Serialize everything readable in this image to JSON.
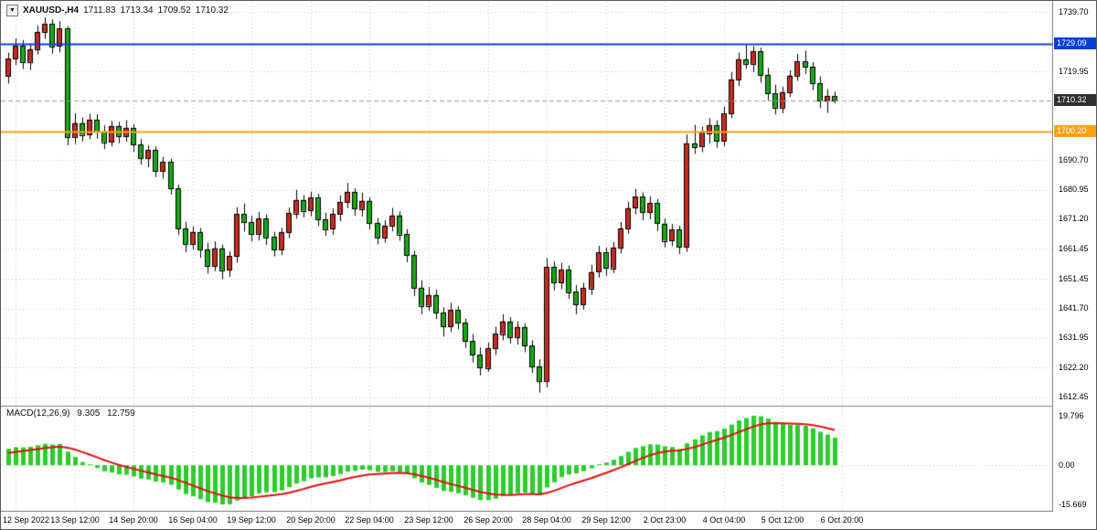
{
  "header": {
    "dropdown_icon": "▼",
    "symbol": "XAUUSD-,H4",
    "open": "1711.83",
    "high": "1713.34",
    "low": "1709.52",
    "close": "1710.32"
  },
  "indicator_header": {
    "name": "MACD(12,26,9)",
    "macd_value": "9.305",
    "signal_value": "12.759"
  },
  "colors": {
    "up_candle": "#c62b20",
    "down_candle": "#18a818",
    "candle_outline": "#000000",
    "grid": "#c8c8c8",
    "separator": "#808080",
    "resistance_line": "#0540d8",
    "support_line": "#ffa018",
    "current_price_line": "#9a9a9a",
    "current_price_badge": "#2f2f2f",
    "macd_histogram": "#2ccc2c",
    "macd_signal": "#e01010"
  },
  "chart_data": {
    "type": "candlestick",
    "symbol": "XAUUSD-",
    "timeframe": "H4",
    "price_axis_rows": [
      {
        "text": "1739.70",
        "style": "plain"
      },
      {
        "text": "1729.09",
        "style": "badge",
        "color": "#0540d8"
      },
      {
        "text": "1719.95",
        "style": "plain"
      },
      {
        "text": "1710.32",
        "style": "badge",
        "color": "#2f2f2f"
      },
      {
        "text": "1700.20",
        "style": "badge",
        "color": "#ffa018"
      },
      {
        "text": "1690.70",
        "style": "plain"
      },
      {
        "text": "1680.95",
        "style": "plain"
      },
      {
        "text": "1671.20",
        "style": "plain"
      },
      {
        "text": "1661.45",
        "style": "plain"
      },
      {
        "text": "1651.45",
        "style": "plain"
      },
      {
        "text": "1641.70",
        "style": "plain"
      },
      {
        "text": "1631.95",
        "style": "plain"
      },
      {
        "text": "1622.20",
        "style": "plain"
      },
      {
        "text": "1612.45",
        "style": "plain"
      }
    ],
    "price_lines": [
      {
        "price": 1729.09,
        "label": "1729.09",
        "kind": "resistance"
      },
      {
        "price": 1710.32,
        "label": "1710.32",
        "kind": "current"
      },
      {
        "price": 1700.2,
        "label": "1700.20",
        "kind": "support"
      }
    ],
    "time_labels": [
      {
        "i": 1,
        "t": "12 Sep 2022"
      },
      {
        "i": 9,
        "t": "13 Sep 12:00"
      },
      {
        "i": 17,
        "t": "14 Sep 20:00"
      },
      {
        "i": 25,
        "t": "16 Sep 04:00"
      },
      {
        "i": 33,
        "t": "19 Sep 12:00"
      },
      {
        "i": 41,
        "t": "20 Sep 20:00"
      },
      {
        "i": 49,
        "t": "22 Sep 04:00"
      },
      {
        "i": 57,
        "t": "23 Sep 12:00"
      },
      {
        "i": 65,
        "t": "26 Sep 20:00"
      },
      {
        "i": 73,
        "t": "28 Sep 04:00"
      },
      {
        "i": 81,
        "t": "29 Sep 12:00"
      },
      {
        "i": 89,
        "t": "2 Oct 23:00"
      },
      {
        "i": 97,
        "t": "4 Oct 04:00"
      },
      {
        "i": 105,
        "t": "5 Oct 12:00"
      },
      {
        "i": 113,
        "t": "6 Oct 20:00"
      }
    ],
    "indicator": {
      "name": "MACD",
      "params": [
        12,
        26,
        9
      ],
      "macd_display": "9.305",
      "signal_display": "12.759",
      "axis": [
        "19.796",
        "0.00",
        "-15.669"
      ]
    },
    "candles": [
      [
        1718.5,
        1726.2,
        1716.0,
        1724.3
      ],
      [
        1724.3,
        1731.0,
        1722.1,
        1728.6
      ],
      [
        1728.6,
        1730.4,
        1720.8,
        1723.2
      ],
      [
        1723.2,
        1729.3,
        1720.5,
        1727.4
      ],
      [
        1727.4,
        1735.2,
        1725.6,
        1733.1
      ],
      [
        1733.1,
        1737.9,
        1730.8,
        1735.8
      ],
      [
        1735.8,
        1737.2,
        1725.9,
        1728.4
      ],
      [
        1728.4,
        1736.6,
        1726.3,
        1734.2
      ],
      [
        1734.2,
        1735.0,
        1695.6,
        1698.4
      ],
      [
        1698.4,
        1706.2,
        1696.1,
        1703.0
      ],
      [
        1703.0,
        1704.8,
        1696.9,
        1699.2
      ],
      [
        1699.2,
        1706.0,
        1697.6,
        1704.1
      ],
      [
        1704.1,
        1705.9,
        1697.8,
        1700.3
      ],
      [
        1700.3,
        1702.2,
        1694.4,
        1696.8
      ],
      [
        1696.8,
        1703.7,
        1695.2,
        1702.0
      ],
      [
        1702.0,
        1703.4,
        1696.3,
        1698.7
      ],
      [
        1698.7,
        1703.9,
        1696.8,
        1701.4
      ],
      [
        1701.4,
        1702.6,
        1693.5,
        1695.9
      ],
      [
        1695.9,
        1697.8,
        1689.2,
        1691.3
      ],
      [
        1691.3,
        1695.7,
        1688.4,
        1694.0
      ],
      [
        1694.0,
        1695.3,
        1685.1,
        1687.2
      ],
      [
        1687.2,
        1691.8,
        1684.6,
        1690.1
      ],
      [
        1690.1,
        1691.2,
        1679.3,
        1681.4
      ],
      [
        1681.4,
        1682.6,
        1666.0,
        1668.2
      ],
      [
        1668.2,
        1670.4,
        1660.3,
        1663.1
      ],
      [
        1663.1,
        1668.8,
        1661.2,
        1667.0
      ],
      [
        1667.0,
        1668.3,
        1658.4,
        1661.2
      ],
      [
        1661.2,
        1663.5,
        1653.2,
        1655.8
      ],
      [
        1655.8,
        1663.9,
        1654.0,
        1661.6
      ],
      [
        1661.6,
        1662.8,
        1651.3,
        1654.4
      ],
      [
        1654.4,
        1660.7,
        1652.1,
        1659.0
      ],
      [
        1659.0,
        1675.2,
        1656.8,
        1672.9
      ],
      [
        1672.9,
        1676.4,
        1667.1,
        1670.2
      ],
      [
        1670.2,
        1672.3,
        1663.8,
        1666.4
      ],
      [
        1666.4,
        1673.6,
        1664.2,
        1671.5
      ],
      [
        1671.5,
        1672.8,
        1662.7,
        1665.3
      ],
      [
        1665.3,
        1667.0,
        1658.9,
        1661.1
      ],
      [
        1661.1,
        1668.4,
        1659.3,
        1666.8
      ],
      [
        1666.8,
        1675.0,
        1664.9,
        1673.2
      ],
      [
        1673.2,
        1680.9,
        1671.4,
        1677.6
      ],
      [
        1677.6,
        1679.2,
        1671.8,
        1674.1
      ],
      [
        1674.1,
        1680.3,
        1672.2,
        1678.4
      ],
      [
        1678.4,
        1679.6,
        1668.9,
        1671.2
      ],
      [
        1671.2,
        1673.4,
        1665.7,
        1668.0
      ],
      [
        1668.0,
        1674.8,
        1666.1,
        1672.9
      ],
      [
        1672.9,
        1679.1,
        1670.6,
        1676.8
      ],
      [
        1676.8,
        1683.2,
        1674.9,
        1680.1
      ],
      [
        1680.1,
        1681.4,
        1672.3,
        1674.6
      ],
      [
        1674.6,
        1680.0,
        1672.1,
        1677.3
      ],
      [
        1677.3,
        1678.5,
        1667.8,
        1670.0
      ],
      [
        1670.0,
        1671.6,
        1662.9,
        1665.2
      ],
      [
        1665.2,
        1670.8,
        1663.4,
        1669.1
      ],
      [
        1669.1,
        1674.9,
        1667.2,
        1672.5
      ],
      [
        1672.5,
        1673.8,
        1664.1,
        1666.3
      ],
      [
        1666.3,
        1667.9,
        1657.0,
        1659.4
      ],
      [
        1659.4,
        1660.8,
        1645.8,
        1648.6
      ],
      [
        1648.6,
        1650.9,
        1639.8,
        1642.7
      ],
      [
        1642.7,
        1648.8,
        1640.9,
        1646.2
      ],
      [
        1646.2,
        1647.9,
        1638.2,
        1640.4
      ],
      [
        1640.4,
        1642.1,
        1632.4,
        1635.8
      ],
      [
        1635.8,
        1643.6,
        1633.9,
        1641.2
      ],
      [
        1641.2,
        1642.5,
        1634.8,
        1637.0
      ],
      [
        1637.0,
        1638.4,
        1628.7,
        1630.9
      ],
      [
        1630.9,
        1633.2,
        1623.9,
        1626.4
      ],
      [
        1626.4,
        1628.8,
        1619.6,
        1622.1
      ],
      [
        1622.1,
        1630.4,
        1620.8,
        1628.6
      ],
      [
        1628.6,
        1635.7,
        1626.3,
        1633.4
      ],
      [
        1633.4,
        1639.8,
        1631.2,
        1637.5
      ],
      [
        1637.5,
        1638.9,
        1630.1,
        1632.3
      ],
      [
        1632.3,
        1637.4,
        1629.8,
        1635.6
      ],
      [
        1635.6,
        1636.8,
        1627.3,
        1629.5
      ],
      [
        1629.5,
        1631.2,
        1620.4,
        1622.6
      ],
      [
        1622.6,
        1624.9,
        1613.9,
        1617.8
      ],
      [
        1617.8,
        1658.3,
        1615.6,
        1655.4
      ],
      [
        1655.4,
        1657.2,
        1647.7,
        1650.3
      ],
      [
        1650.3,
        1656.8,
        1648.1,
        1654.6
      ],
      [
        1654.6,
        1655.9,
        1644.9,
        1647.2
      ],
      [
        1647.2,
        1649.5,
        1639.8,
        1643.1
      ],
      [
        1643.1,
        1650.2,
        1641.3,
        1648.4
      ],
      [
        1648.4,
        1656.1,
        1646.2,
        1653.8
      ],
      [
        1653.8,
        1662.4,
        1651.9,
        1660.2
      ],
      [
        1660.2,
        1661.8,
        1652.6,
        1655.1
      ],
      [
        1655.1,
        1663.7,
        1653.4,
        1661.9
      ],
      [
        1661.9,
        1670.3,
        1659.8,
        1668.2
      ],
      [
        1668.2,
        1677.0,
        1666.4,
        1674.9
      ],
      [
        1674.9,
        1681.2,
        1672.8,
        1678.6
      ],
      [
        1678.6,
        1680.1,
        1670.9,
        1673.4
      ],
      [
        1673.4,
        1678.8,
        1671.2,
        1676.5
      ],
      [
        1676.5,
        1677.9,
        1667.3,
        1669.8
      ],
      [
        1669.8,
        1671.4,
        1661.9,
        1664.2
      ],
      [
        1664.2,
        1669.6,
        1662.3,
        1667.8
      ],
      [
        1667.8,
        1669.0,
        1659.7,
        1662.1
      ],
      [
        1662.1,
        1699.2,
        1660.4,
        1696.3
      ],
      [
        1696.3,
        1702.4,
        1692.8,
        1695.1
      ],
      [
        1695.1,
        1701.8,
        1693.4,
        1699.7
      ],
      [
        1699.7,
        1704.6,
        1696.2,
        1702.3
      ],
      [
        1702.3,
        1703.9,
        1694.8,
        1697.1
      ],
      [
        1697.1,
        1708.4,
        1695.3,
        1706.2
      ],
      [
        1706.2,
        1719.8,
        1704.6,
        1717.4
      ],
      [
        1717.4,
        1726.3,
        1715.2,
        1724.1
      ],
      [
        1724.1,
        1729.1,
        1720.9,
        1722.6
      ],
      [
        1722.6,
        1728.4,
        1719.8,
        1726.7
      ],
      [
        1726.7,
        1727.9,
        1716.3,
        1718.9
      ],
      [
        1718.9,
        1721.2,
        1710.4,
        1712.8
      ],
      [
        1712.8,
        1715.6,
        1705.8,
        1708.1
      ],
      [
        1708.1,
        1714.9,
        1706.2,
        1713.2
      ],
      [
        1713.2,
        1720.4,
        1711.6,
        1718.7
      ],
      [
        1718.7,
        1725.8,
        1716.9,
        1723.4
      ],
      [
        1723.4,
        1726.9,
        1719.2,
        1721.6
      ],
      [
        1721.6,
        1723.1,
        1713.8,
        1716.2
      ],
      [
        1716.2,
        1718.4,
        1707.9,
        1710.4
      ],
      [
        1710.4,
        1714.2,
        1706.3,
        1711.8
      ],
      [
        1711.83,
        1713.34,
        1709.52,
        1710.32
      ]
    ]
  }
}
